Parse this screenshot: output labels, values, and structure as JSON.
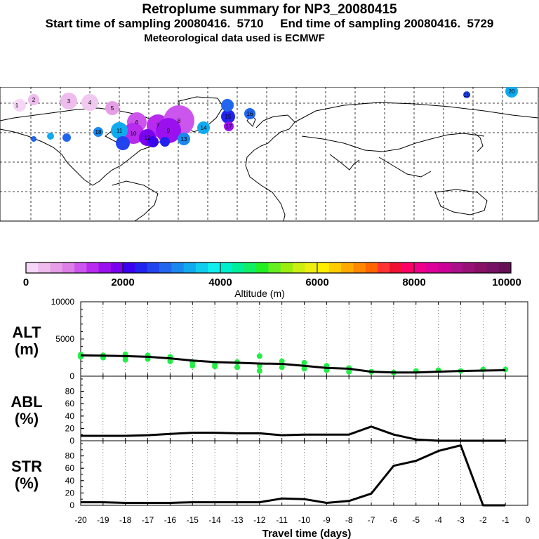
{
  "header": {
    "title": "Retroplume summary for NP3_20080415",
    "subtitle": "Start time of sampling 20080416.  5710     End time of sampling 20080416.  5729",
    "met_line": "Meteorological data used is ECMWF"
  },
  "colorbar": {
    "ticks": [
      "0",
      "2000",
      "4000",
      "6000",
      "8000",
      "10000"
    ],
    "label": "Altitude (m)",
    "colors": [
      "#f6d6f6",
      "#eebcee",
      "#e69ee6",
      "#dc7ee6",
      "#cc55ee",
      "#b82aee",
      "#9a10ee",
      "#7a00ee",
      "#3a00f0",
      "#2222ee",
      "#2244ee",
      "#2266ee",
      "#1a88ee",
      "#10aaee",
      "#10ccee",
      "#10eeee",
      "#00eecc",
      "#00ee99",
      "#10ee66",
      "#22ee22",
      "#66ee22",
      "#99ee10",
      "#ccee10",
      "#eeee10",
      "#ffee00",
      "#ffcc00",
      "#ffaa00",
      "#ff8800",
      "#ff6600",
      "#ff3333",
      "#ee1133",
      "#ff0066",
      "#ee0088",
      "#dd0099",
      "#cc0099",
      "#aa1188",
      "#991177",
      "#881166",
      "#771166",
      "#661155"
    ]
  },
  "map": {
    "labels": [
      "1",
      "2",
      "3",
      "4",
      "5",
      "6",
      "7",
      "8",
      "9",
      "10",
      "11",
      "12",
      "13",
      "14",
      "15",
      "16",
      "17",
      "18",
      "19",
      "20"
    ]
  },
  "chart_data": [
    {
      "type": "line",
      "panel": "ALT",
      "ylabel": "ALT",
      "yunit": "(m)",
      "ylim": [
        0,
        10000
      ],
      "yticks": [
        "10000",
        "5000",
        "0"
      ],
      "x": [
        -20,
        -19,
        -18,
        -17,
        -16,
        -15,
        -14,
        -13,
        -12,
        -11,
        -10,
        -9,
        -8,
        -7,
        -6,
        -5,
        -4,
        -3,
        -2,
        -1
      ],
      "values": [
        2800,
        2750,
        2700,
        2600,
        2400,
        2100,
        1900,
        1800,
        1700,
        1650,
        1400,
        1100,
        1000,
        600,
        500,
        500,
        600,
        700,
        750,
        800
      ],
      "points": [
        [
          -20,
          2900
        ],
        [
          -20,
          2600
        ],
        [
          -19,
          2800
        ],
        [
          -19,
          2500
        ],
        [
          -18,
          2950
        ],
        [
          -18,
          2600
        ],
        [
          -18,
          2200
        ],
        [
          -17,
          2800
        ],
        [
          -17,
          2300
        ],
        [
          -16,
          2600
        ],
        [
          -16,
          2000
        ],
        [
          -15,
          1900
        ],
        [
          -15,
          1400
        ],
        [
          -14,
          1700
        ],
        [
          -14,
          1300
        ],
        [
          -13,
          1900
        ],
        [
          -13,
          1200
        ],
        [
          -12,
          2700
        ],
        [
          -12,
          1400
        ],
        [
          -12,
          700
        ],
        [
          -11,
          2000
        ],
        [
          -11,
          1200
        ],
        [
          -10,
          1800
        ],
        [
          -10,
          1000
        ],
        [
          -9,
          1400
        ],
        [
          -9,
          800
        ],
        [
          -8,
          1100
        ],
        [
          -8,
          600
        ],
        [
          -7,
          600
        ],
        [
          -6,
          500
        ],
        [
          -5,
          700
        ],
        [
          -4,
          800
        ],
        [
          -3,
          700
        ],
        [
          -2,
          900
        ],
        [
          -1,
          900
        ]
      ],
      "marker_color": "#22ee44"
    },
    {
      "type": "line",
      "panel": "ABL",
      "ylabel": "ABL",
      "yunit": "(%)",
      "ylim": [
        0,
        100
      ],
      "yticks": [
        "80",
        "60",
        "40",
        "20",
        "0"
      ],
      "x": [
        -20,
        -19,
        -18,
        -17,
        -16,
        -15,
        -14,
        -13,
        -12,
        -11,
        -10,
        -9,
        -8,
        -7,
        -6,
        -5,
        -4,
        -3,
        -2,
        -1
      ],
      "values": [
        8,
        8,
        8,
        9,
        11,
        13,
        13,
        12,
        12,
        9,
        10,
        10,
        10,
        23,
        10,
        2,
        0,
        0,
        0,
        0
      ]
    },
    {
      "type": "line",
      "panel": "STR",
      "ylabel": "STR",
      "yunit": "(%)",
      "ylim": [
        0,
        100
      ],
      "yticks": [
        "80",
        "60",
        "40",
        "20",
        "0"
      ],
      "x": [
        -20,
        -19,
        -18,
        -17,
        -16,
        -15,
        -14,
        -13,
        -12,
        -11,
        -10,
        -9,
        -8,
        -7,
        -6,
        -5,
        -4,
        -3,
        -2,
        -1
      ],
      "values": [
        5,
        5,
        4,
        4,
        4,
        5,
        5,
        5,
        5,
        11,
        10,
        4,
        7,
        19,
        64,
        72,
        88,
        97,
        0,
        0
      ],
      "xlabel": "Travel time (days)",
      "xticks": [
        "-20",
        "-19",
        "-18",
        "-17",
        "-16",
        "-15",
        "-14",
        "-13",
        "-12",
        "-11",
        "-10",
        "-9",
        "-8",
        "-7",
        "-6",
        "-5",
        "-4",
        "-3",
        "-2",
        "-1",
        "0"
      ]
    }
  ]
}
